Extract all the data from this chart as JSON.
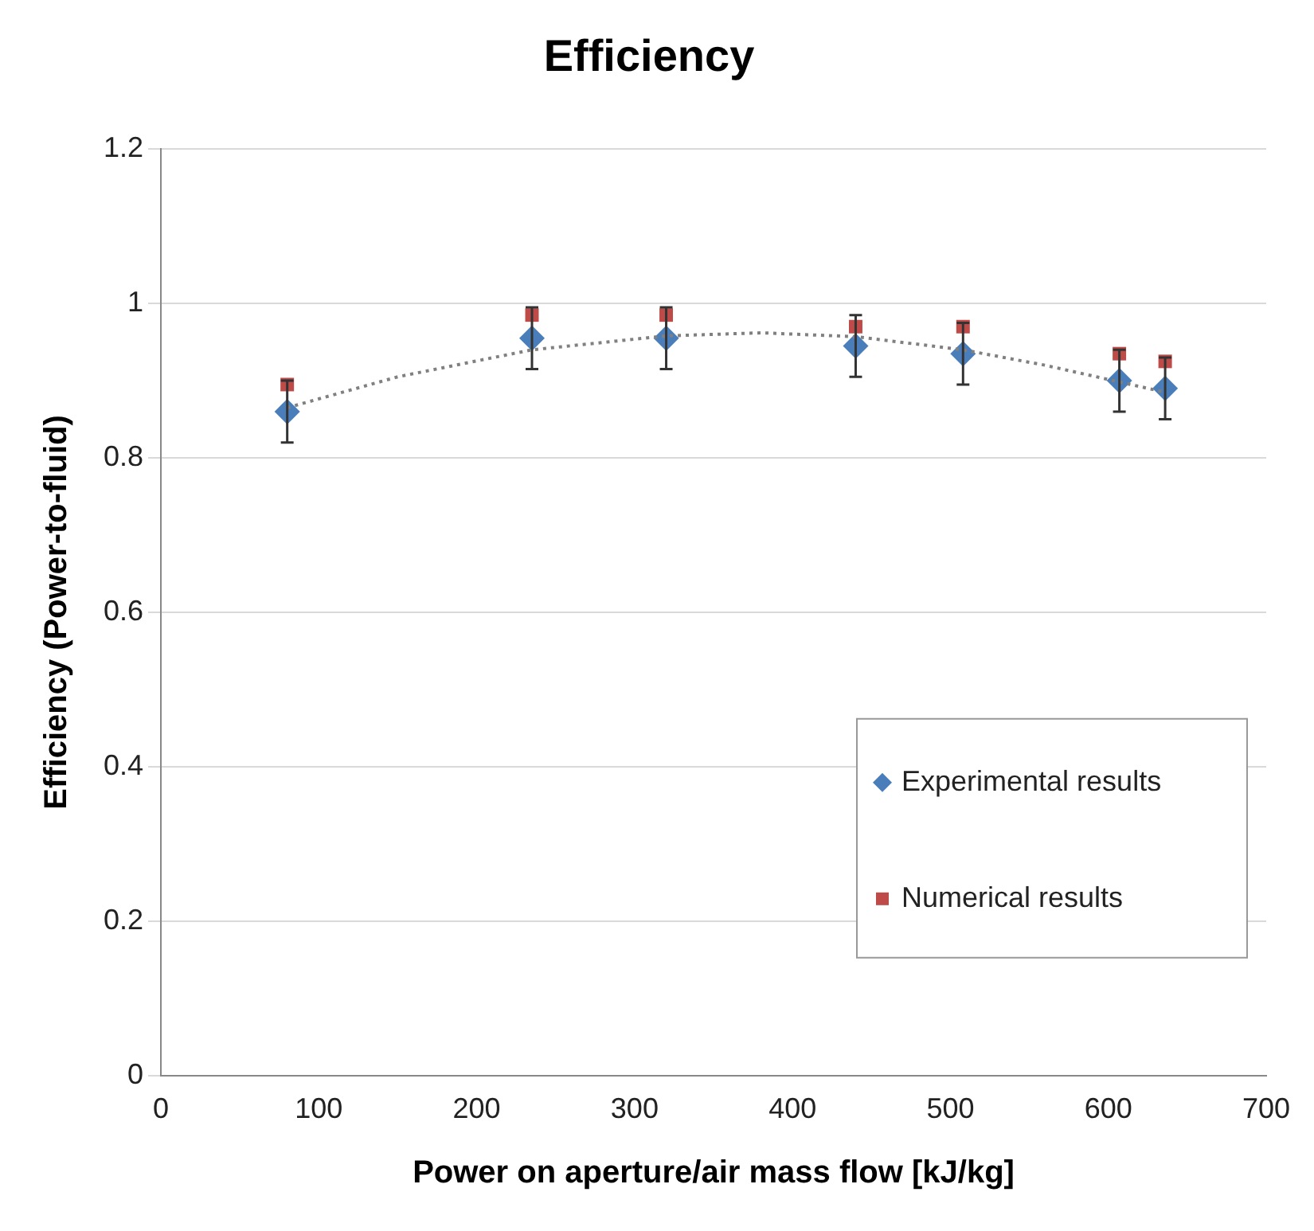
{
  "chart_data": {
    "type": "scatter",
    "title": "Efficiency",
    "xlabel": "Power on aperture/air mass flow [kJ/kg]",
    "ylabel": "Efficiency (Power-to-fluid)",
    "xlim": [
      0,
      700
    ],
    "xticks": [
      0,
      100,
      200,
      300,
      400,
      500,
      600,
      700
    ],
    "ylim": [
      0,
      1.2
    ],
    "yticks": [
      0,
      0.2,
      0.4,
      0.6,
      0.8,
      1,
      1.2
    ],
    "grid": "y",
    "legend": "right",
    "series": [
      {
        "type": "line",
        "color": "#808080",
        "line_style": "dotted",
        "marker": "none",
        "x": [
          80,
          150,
          235,
          320,
          380,
          440,
          508,
          560,
          636
        ],
        "values": [
          0.865,
          0.905,
          0.94,
          0.958,
          0.962,
          0.957,
          0.94,
          0.92,
          0.885
        ]
      },
      {
        "name": "Experimental results",
        "color": "#4a7ebb",
        "marker": "diamond",
        "x": [
          80,
          235,
          320,
          440,
          508,
          607,
          636
        ],
        "values": [
          0.86,
          0.955,
          0.955,
          0.945,
          0.935,
          0.9,
          0.89
        ],
        "errors": [
          0.04,
          0.04,
          0.04,
          0.04,
          0.04,
          0.04,
          0.04
        ]
      },
      {
        "name": "Numerical results",
        "color": "#be4b48",
        "marker": "square",
        "x": [
          80,
          235,
          320,
          440,
          508,
          607,
          636
        ],
        "values": [
          0.895,
          0.985,
          0.985,
          0.97,
          0.97,
          0.935,
          0.925
        ]
      }
    ]
  }
}
